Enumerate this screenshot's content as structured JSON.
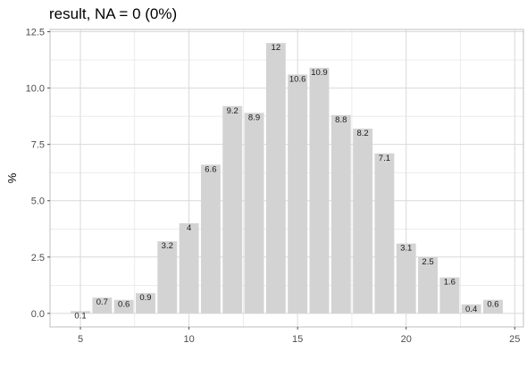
{
  "chart_data": {
    "type": "bar",
    "title": "result, NA = 0 (0%)",
    "xlabel": "",
    "ylabel": "%",
    "x": [
      5,
      6,
      7,
      8,
      9,
      10,
      11,
      12,
      13,
      14,
      15,
      16,
      17,
      18,
      19,
      20,
      21,
      22,
      23,
      24
    ],
    "values": [
      0.1,
      0.7,
      0.6,
      0.9,
      3.2,
      4,
      6.6,
      9.2,
      8.9,
      12,
      10.6,
      10.9,
      8.8,
      8.2,
      7.1,
      3.1,
      2.5,
      1.6,
      0.4,
      0.6
    ],
    "labels": [
      "0.1",
      "0.7",
      "0.6",
      "0.9",
      "3.2",
      "4",
      "6.6",
      "9.2",
      "8.9",
      "12",
      "10.6",
      "10.9",
      "8.8",
      "8.2",
      "7.1",
      "3.1",
      "2.5",
      "1.6",
      "0.4",
      "0.6"
    ],
    "xlim": [
      3.6,
      25.4
    ],
    "ylim": [
      -0.6,
      12.6
    ],
    "x_ticks": [
      5,
      10,
      15,
      20,
      25
    ],
    "x_tick_labels": [
      "5",
      "10",
      "15",
      "20",
      "25"
    ],
    "y_ticks": [
      0,
      2.5,
      5,
      7.5,
      10,
      12.5
    ],
    "y_tick_labels": [
      "0.0",
      "2.5",
      "5.0",
      "7.5",
      "10.0",
      "12.5"
    ],
    "grid": true,
    "bar_color": "#d3d3d3",
    "grid_color": "#d9d9d9"
  }
}
